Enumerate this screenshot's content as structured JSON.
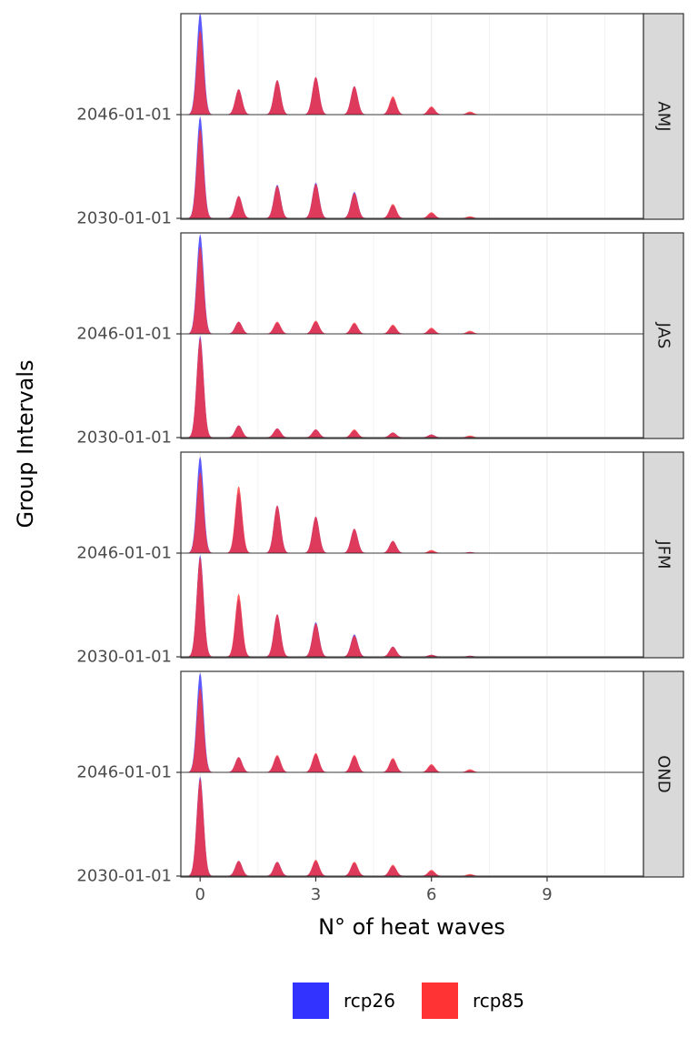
{
  "chart_data": {
    "type": "ridgeline-density",
    "xlabel": "N° of heat waves",
    "ylabel": "Group Intervals",
    "x_ticks": [
      0,
      3,
      6,
      9
    ],
    "x_range": [
      -0.5,
      11.5
    ],
    "row_labels": [
      "2030-01-01",
      "2046-01-01"
    ],
    "facets": [
      {
        "name": "AMJ",
        "rows": [
          {
            "group": "2030-01-01",
            "rcp26": [
              1.0,
              0.22,
              0.33,
              0.35,
              0.26,
              0.13,
              0.05,
              0.01
            ],
            "rcp85": [
              0.88,
              0.22,
              0.32,
              0.34,
              0.25,
              0.14,
              0.06,
              0.02
            ]
          },
          {
            "group": "2046-01-01",
            "rcp26": [
              1.0,
              0.25,
              0.34,
              0.37,
              0.28,
              0.16,
              0.07,
              0.02
            ],
            "rcp85": [
              0.83,
              0.25,
              0.34,
              0.37,
              0.28,
              0.18,
              0.08,
              0.03
            ]
          }
        ]
      },
      {
        "name": "JAS",
        "rows": [
          {
            "group": "2030-01-01",
            "rcp26": [
              1.0,
              0.12,
              0.09,
              0.08,
              0.07,
              0.05,
              0.03,
              0.01
            ],
            "rcp85": [
              0.98,
              0.12,
              0.09,
              0.08,
              0.08,
              0.05,
              0.03,
              0.02
            ]
          },
          {
            "group": "2046-01-01",
            "rcp26": [
              0.98,
              0.12,
              0.11,
              0.12,
              0.1,
              0.08,
              0.05,
              0.02
            ],
            "rcp85": [
              0.86,
              0.12,
              0.12,
              0.13,
              0.11,
              0.09,
              0.06,
              0.03
            ]
          }
        ]
      },
      {
        "name": "JFM",
        "rows": [
          {
            "group": "2030-01-01",
            "rcp26": [
              1.0,
              0.57,
              0.42,
              0.34,
              0.22,
              0.1,
              0.02,
              0.01
            ],
            "rcp85": [
              0.98,
              0.62,
              0.42,
              0.33,
              0.21,
              0.1,
              0.02,
              0.01
            ]
          },
          {
            "group": "2046-01-01",
            "rcp26": [
              0.95,
              0.6,
              0.47,
              0.36,
              0.24,
              0.12,
              0.02,
              0.01
            ],
            "rcp85": [
              0.8,
              0.66,
              0.47,
              0.36,
              0.24,
              0.12,
              0.03,
              0.01
            ]
          }
        ]
      },
      {
        "name": "OND",
        "rows": [
          {
            "group": "2030-01-01",
            "rcp26": [
              0.98,
              0.15,
              0.14,
              0.15,
              0.13,
              0.1,
              0.05,
              0.01
            ],
            "rcp85": [
              0.96,
              0.15,
              0.14,
              0.16,
              0.14,
              0.11,
              0.06,
              0.02
            ]
          },
          {
            "group": "2046-01-01",
            "rcp26": [
              0.98,
              0.15,
              0.16,
              0.18,
              0.16,
              0.13,
              0.07,
              0.02
            ],
            "rcp85": [
              0.83,
              0.15,
              0.17,
              0.19,
              0.17,
              0.14,
              0.08,
              0.03
            ]
          }
        ]
      }
    ],
    "legend": [
      {
        "name": "rcp26",
        "color": "#3333ff"
      },
      {
        "name": "rcp85",
        "color": "#ff3333"
      }
    ],
    "legend_position": "bottom",
    "grid": true
  }
}
